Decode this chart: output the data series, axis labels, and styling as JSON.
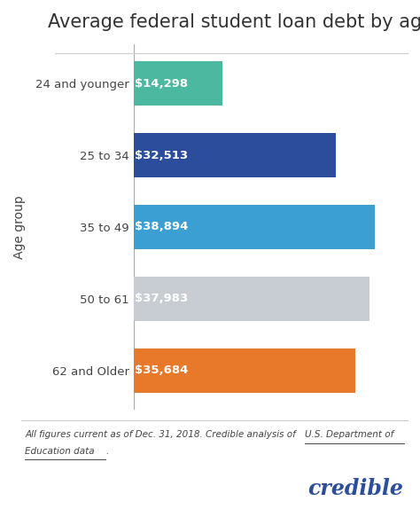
{
  "title": "Average federal student loan debt by age group",
  "categories": [
    "24 and younger",
    "25 to 34",
    "35 to 49",
    "50 to 61",
    "62 and Older"
  ],
  "values": [
    14298,
    32513,
    38894,
    37983,
    35684
  ],
  "labels": [
    "$14,298",
    "$32,513",
    "$38,894",
    "$37,983",
    "$35,684"
  ],
  "bar_colors": [
    "#4db8a0",
    "#2b4d9b",
    "#3b9fd4",
    "#c8cdd4",
    "#e8782a"
  ],
  "ylabel": "Age group",
  "xlim": [
    0,
    44000
  ],
  "background_color": "#ffffff",
  "credible_color": "#2b4d9b",
  "title_fontsize": 15,
  "label_fontsize": 9.5,
  "tick_fontsize": 9.5,
  "ylabel_fontsize": 10
}
